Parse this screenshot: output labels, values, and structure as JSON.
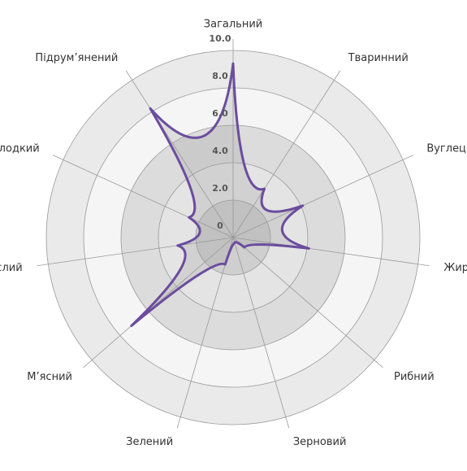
{
  "chart_data": {
    "type": "radar",
    "categories": [
      "Загальний",
      "Тваринний",
      "Вуглець",
      "Жирний",
      "Рибний",
      "Зерновий",
      "Зелений",
      "М’ясний",
      "Кислий",
      "Солодкий",
      "Підрум’янений"
    ],
    "values": [
      9.3,
      3.1,
      4.1,
      4.1,
      0.8,
      0.3,
      1.5,
      7.2,
      3.0,
      2.6,
      8.2
    ],
    "color": "#6b4c9e",
    "ylim": [
      0,
      10
    ],
    "yticks": [
      0,
      {
        "value": 2,
        "label": "2.0"
      },
      {
        "value": 4,
        "label": "4.0"
      },
      {
        "value": 6,
        "label": "6.0"
      },
      {
        "value": 8,
        "label": "8.0"
      },
      {
        "value": 10,
        "label": "10.0"
      }
    ]
  }
}
